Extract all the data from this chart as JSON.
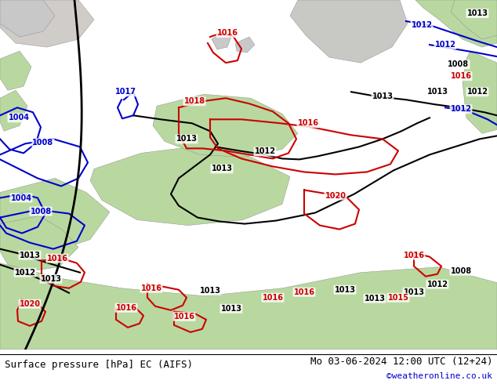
{
  "title_left": "Surface pressure [hPa] EC (AIFS)",
  "title_right": "Mo 03-06-2024 12:00 UTC (12+24)",
  "copyright": "©weatheronline.co.uk",
  "map_bg": "#c8d4e8",
  "land_green": "#b8d8a0",
  "land_gray": "#c8c8c8",
  "land_gray2": "#d0ccc8",
  "land_gray3": "#c8c8c4",
  "isobar_black": "#000000",
  "isobar_blue": "#0000cc",
  "isobar_red": "#cc0000",
  "footer_bg": "#ffffff",
  "footer_line": "#000000",
  "copyright_color": "#0000cc",
  "fig_width": 6.34,
  "fig_height": 4.9,
  "dpi": 100
}
